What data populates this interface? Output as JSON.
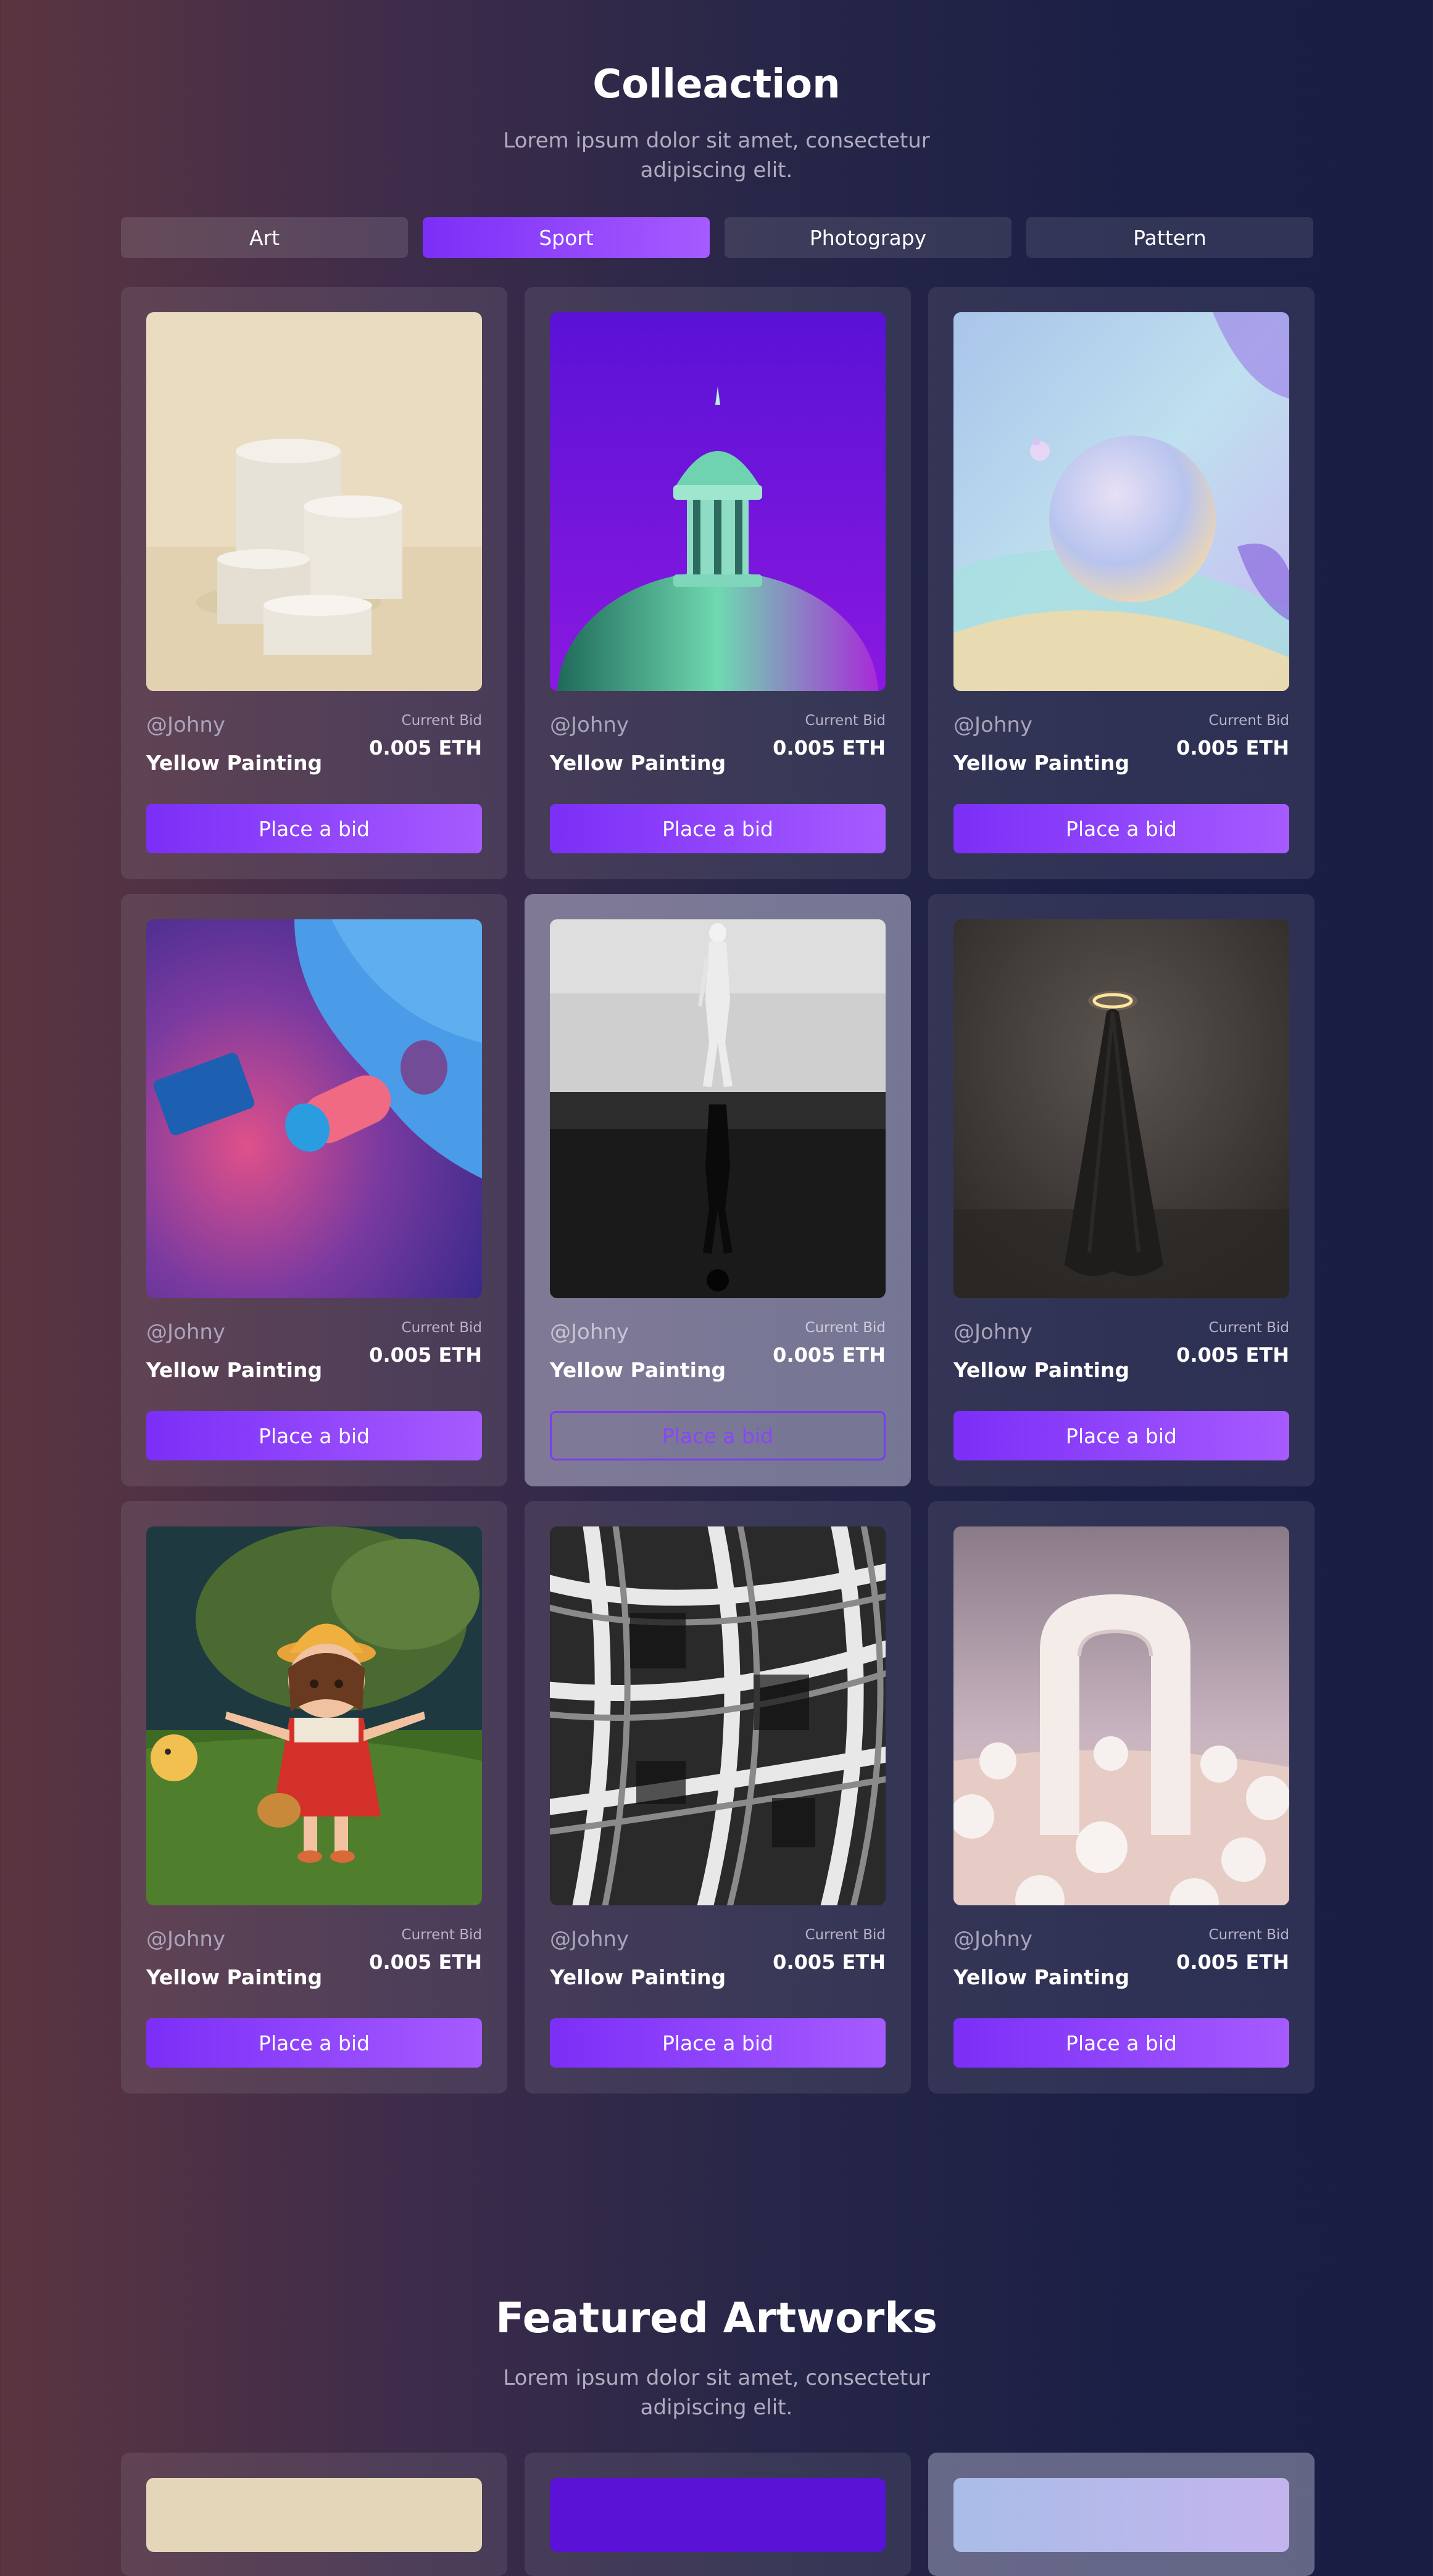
{
  "collection": {
    "title": "Colleaction",
    "subtitle_line1": "Lorem ipsum dolor sit amet, consectetur",
    "subtitle_line2": "adipiscing elit."
  },
  "tabs": [
    {
      "label": "Art",
      "active": false
    },
    {
      "label": "Sport",
      "active": true
    },
    {
      "label": "Photograpy",
      "active": false
    },
    {
      "label": "Pattern",
      "active": false
    }
  ],
  "cards": [
    {
      "handle": "@Johny",
      "name": "Yellow Painting",
      "bid_label": "Current Bid",
      "bid_value": "0.005 ETH",
      "button": "Place a bid",
      "image": "cylinders-beige"
    },
    {
      "handle": "@Johny",
      "name": "Yellow Painting",
      "bid_label": "Current Bid",
      "bid_value": "0.005 ETH",
      "button": "Place a bid",
      "image": "tower-dome-purple"
    },
    {
      "handle": "@Johny",
      "name": "Yellow Painting",
      "bid_label": "Current Bid",
      "bid_value": "0.005 ETH",
      "button": "Place a bid",
      "image": "sphere-pastel"
    },
    {
      "handle": "@Johny",
      "name": "Yellow Painting",
      "bid_label": "Current Bid",
      "bid_value": "0.005 ETH",
      "button": "Place a bid",
      "image": "shapes-pink-blue"
    },
    {
      "handle": "@Johny",
      "name": "Yellow Painting",
      "bid_label": "Current Bid",
      "bid_value": "0.005 ETH",
      "button": "Place a bid",
      "image": "statue-reflection",
      "highlighted": true
    },
    {
      "handle": "@Johny",
      "name": "Yellow Painting",
      "bid_label": "Current Bid",
      "bid_value": "0.005 ETH",
      "button": "Place a bid",
      "image": "ghost-halo"
    },
    {
      "handle": "@Johny",
      "name": "Yellow Painting",
      "bid_label": "Current Bid",
      "bid_value": "0.005 ETH",
      "button": "Place a bid",
      "image": "girl-figurine"
    },
    {
      "handle": "@Johny",
      "name": "Yellow Painting",
      "bid_label": "Current Bid",
      "bid_value": "0.005 ETH",
      "button": "Place a bid",
      "image": "architecture-bw"
    },
    {
      "handle": "@Johny",
      "name": "Yellow Painting",
      "bid_label": "Current Bid",
      "bid_value": "0.005 ETH",
      "button": "Place a bid",
      "image": "arch-spheres"
    }
  ],
  "featured": {
    "title": "Featured Artworks",
    "subtitle_line1": "Lorem ipsum dolor sit amet, consectetur",
    "subtitle_line2": "adipiscing elit."
  },
  "colors": {
    "accent_start": "#7b2ff7",
    "accent_end": "#a65bff",
    "muted_text": "#aaa4bb"
  }
}
